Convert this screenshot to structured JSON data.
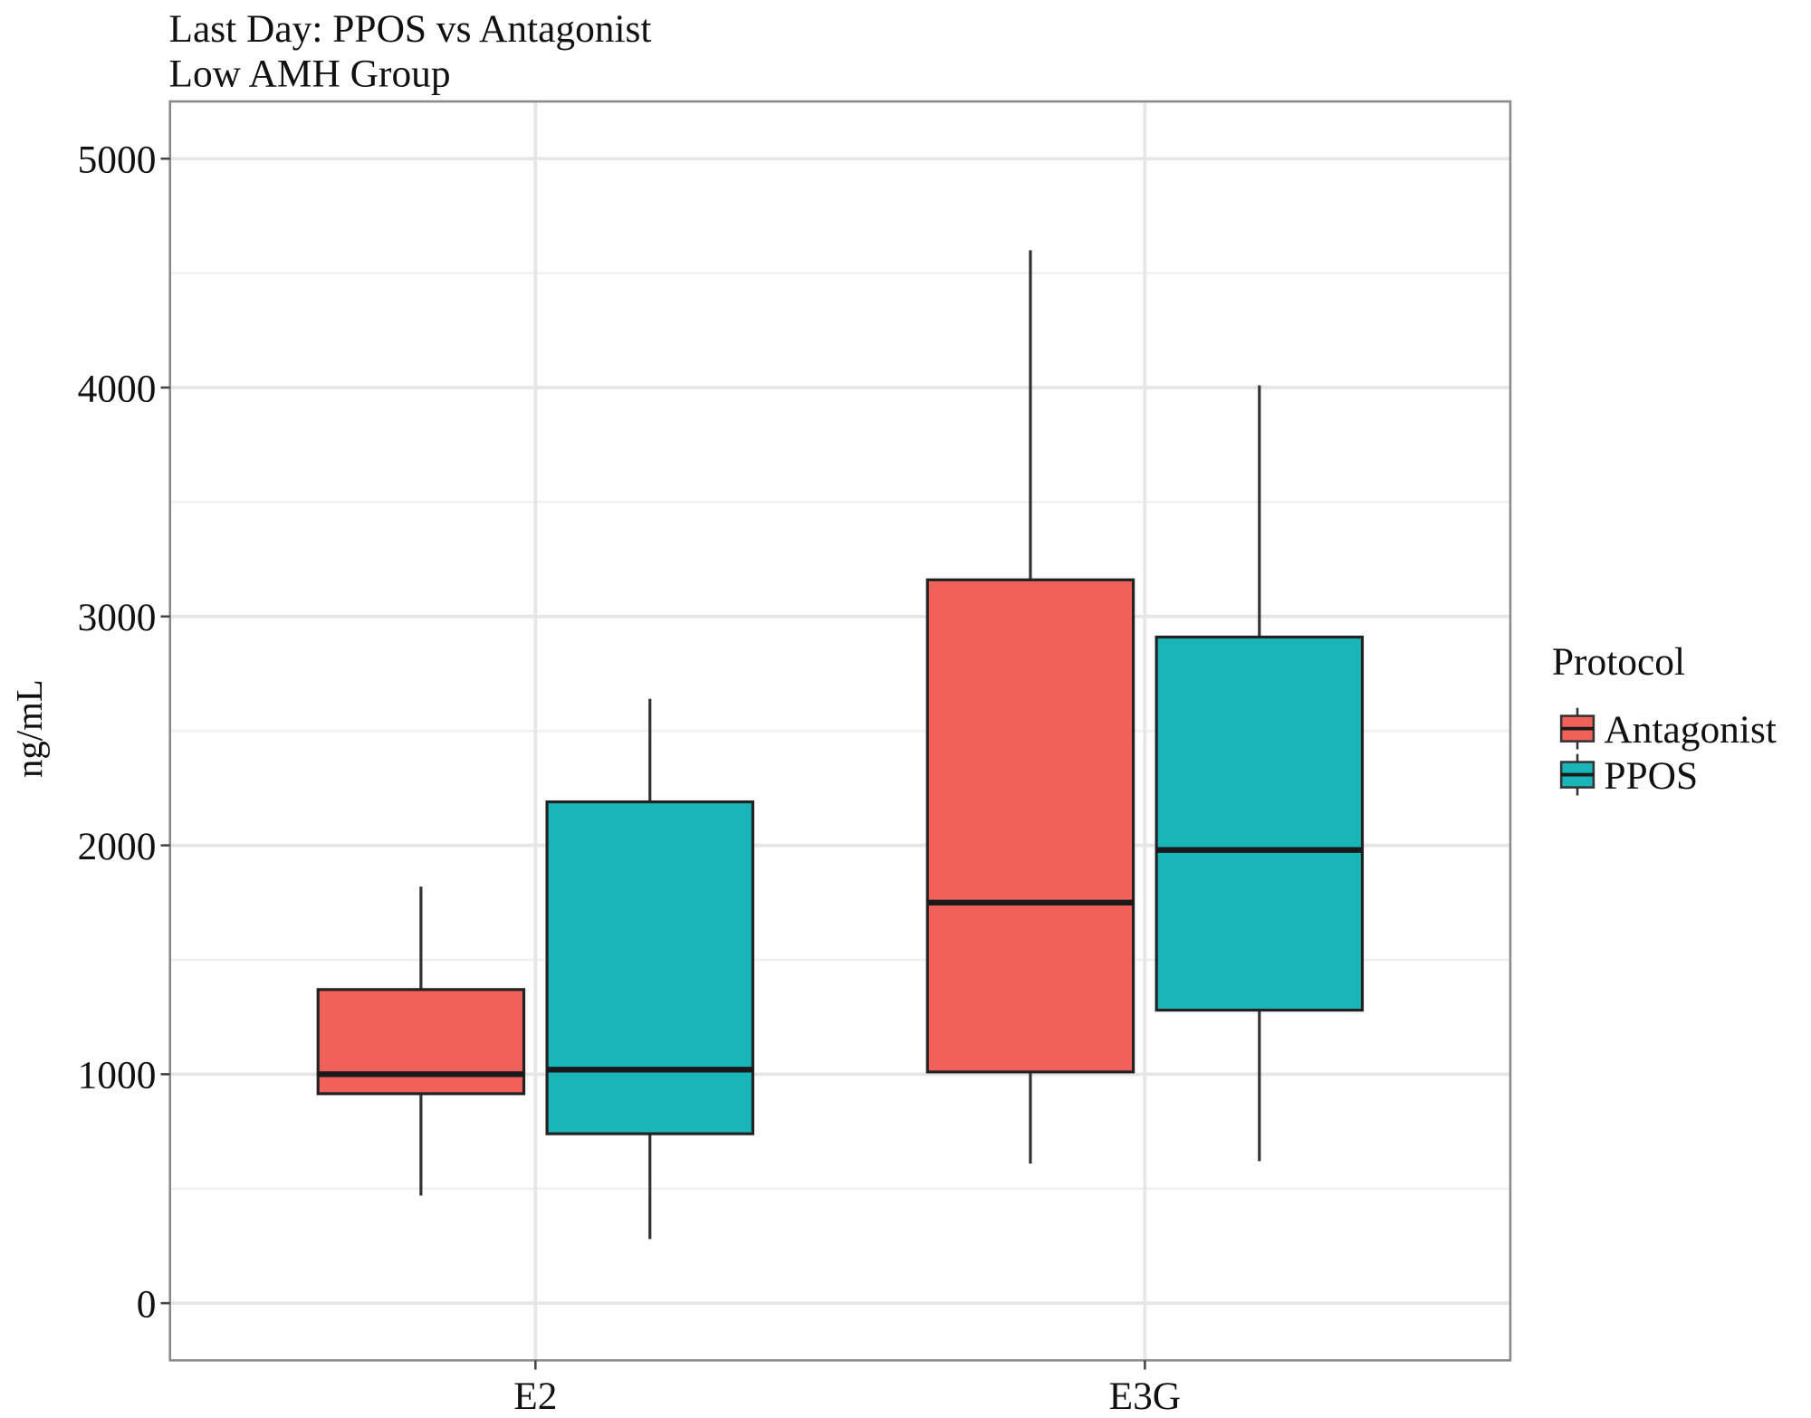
{
  "chart_data": {
    "type": "box",
    "title": "Last Day: PPOS vs Antagonist",
    "subtitle": "Low AMH Group",
    "xlabel": "",
    "ylabel": "ng/mL",
    "ylim": [
      -250,
      5250
    ],
    "yticks": [
      0,
      1000,
      2000,
      3000,
      4000,
      5000
    ],
    "ytick_labels": [
      "0",
      "1000",
      "2000",
      "3000",
      "4000",
      "5000"
    ],
    "categories": [
      "E2",
      "E3G"
    ],
    "grid": true,
    "legend": {
      "title": "Protocol",
      "position": "right"
    },
    "series": [
      {
        "name": "Antagonist",
        "color": "#F2605A",
        "boxes": [
          {
            "category": "E2",
            "min": 470,
            "q1": 915,
            "median": 1000,
            "q3": 1370,
            "max": 1820
          },
          {
            "category": "E3G",
            "min": 610,
            "q1": 1010,
            "median": 1750,
            "q3": 3160,
            "max": 4600
          }
        ]
      },
      {
        "name": "PPOS",
        "color": "#1AB5B8",
        "boxes": [
          {
            "category": "E2",
            "min": 280,
            "q1": 740,
            "median": 1020,
            "q3": 2190,
            "max": 2640
          },
          {
            "category": "E3G",
            "min": 620,
            "q1": 1280,
            "median": 1980,
            "q3": 2910,
            "max": 4010
          }
        ]
      }
    ]
  }
}
